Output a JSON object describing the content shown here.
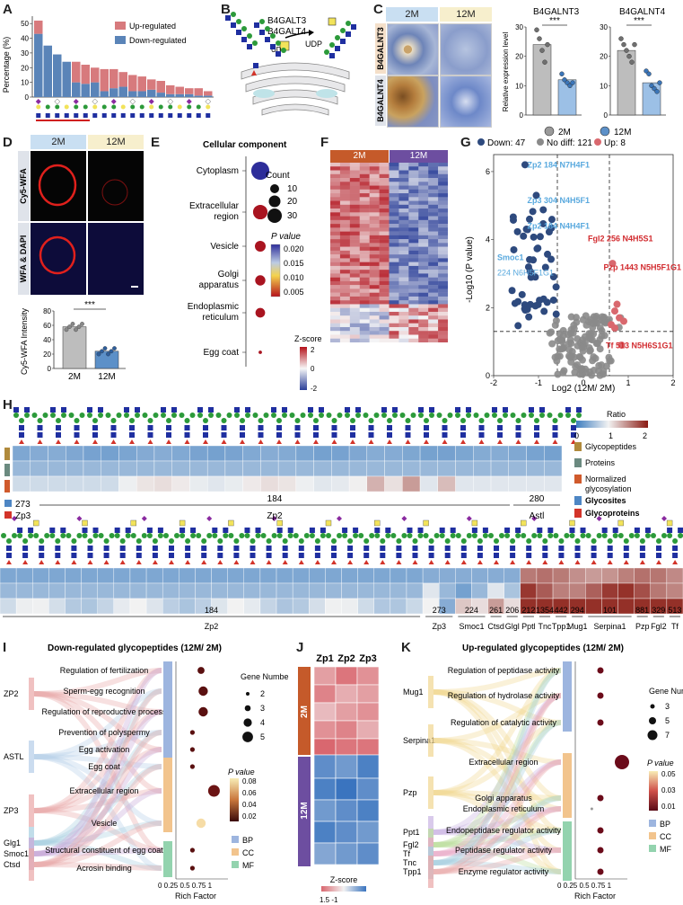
{
  "panel_labels": {
    "A": "A",
    "B": "B",
    "C": "C",
    "D": "D",
    "E": "E",
    "F": "F",
    "G": "G",
    "H": "H",
    "I": "I",
    "J": "J",
    "K": "K"
  },
  "panelA": {
    "ylabel": "Percentage (%)",
    "legend": [
      {
        "label": "Up-regulated",
        "color": "#d77a7d"
      },
      {
        "label": "Down-regulated",
        "color": "#5a84b8"
      }
    ],
    "yticks": [
      "0",
      "10",
      "20",
      "30",
      "40",
      "50"
    ],
    "chart_data": {
      "type": "bar",
      "ylim": [
        0,
        55
      ],
      "series": [
        {
          "name": "Down-regulated",
          "values": [
            43,
            35,
            29,
            24,
            10,
            9,
            10,
            4,
            6,
            7,
            4,
            4,
            5,
            3,
            2,
            2,
            2,
            1,
            1
          ]
        },
        {
          "name": "Up-regulated",
          "values": [
            9,
            0,
            0,
            0,
            14,
            13,
            10,
            15,
            13,
            10,
            11,
            10,
            7,
            8,
            6,
            5,
            4,
            5,
            3
          ]
        }
      ]
    }
  },
  "panelB": {
    "enz1": "B4GALT3",
    "enz2": "B4GALT4",
    "udp": "UDP"
  },
  "panelC": {
    "col1": "2M",
    "col2": "12M",
    "row1": "B4GALNT3",
    "row2": "B4GALNT4",
    "chart1_title": "B4GALNT3",
    "chart2_title": "B4GALNT4",
    "ylabel": "Relative expression level",
    "yticks": [
      "0",
      "10",
      "20",
      "30"
    ],
    "sig": "***",
    "legend1": "2M",
    "legend2": "12M",
    "chart_data": {
      "type": "bar",
      "categories": [
        "2M",
        "12M"
      ],
      "series": [
        {
          "name": "B4GALNT3",
          "values": [
            24,
            12
          ]
        },
        {
          "name": "B4GALNT4",
          "values": [
            22,
            11
          ]
        }
      ],
      "ylim": [
        0,
        30
      ]
    }
  },
  "panelD": {
    "col1": "2M",
    "col2": "12M",
    "row1": "Cy5-WFA",
    "row2": "WFA & DAPI",
    "ylabel": "Cy5-WFA Intensity",
    "yticks": [
      "0",
      "20",
      "40",
      "60",
      "80"
    ],
    "sig": "***",
    "x1": "2M",
    "x2": "12M",
    "chart_data": {
      "type": "bar",
      "categories": [
        "2M",
        "12M"
      ],
      "values": [
        58,
        24
      ],
      "ylim": [
        0,
        80
      ]
    }
  },
  "panelE": {
    "title": "Cellular component",
    "terms": [
      "Cytoplasm",
      "Extracellular region",
      "Vesicle",
      "Golgi apparatus",
      "Endoplasmic reticulum",
      "Egg coat"
    ],
    "count_title": "Count",
    "counts": [
      "10",
      "20",
      "30"
    ],
    "p_title": "P value",
    "p_ticks": [
      "0.020",
      "0.015",
      "0.010",
      "0.005"
    ],
    "chart_data": {
      "type": "scatter",
      "categories": [
        "Cytoplasm",
        "Extracellular region",
        "Vesicle",
        "Golgi apparatus",
        "Endoplasmic reticulum",
        "Egg coat"
      ],
      "counts": [
        28,
        18,
        10,
        9,
        8,
        1
      ],
      "pvalues": [
        0.021,
        0.003,
        0.003,
        0.003,
        0.003,
        0.002
      ]
    }
  },
  "panelF": {
    "col1": "2M",
    "col2": "12M",
    "zlabel": "Z-score",
    "zticks": [
      "2",
      "0",
      "-2"
    ]
  },
  "panelG": {
    "legend": [
      {
        "label": "Down: 47",
        "color": "#2e4a7e"
      },
      {
        "label": "No diff: 121",
        "color": "#8a8a8a"
      },
      {
        "label": "Up: 8",
        "color": "#d9686e"
      }
    ],
    "xlabel": "Log2 (12M/ 2M)",
    "ylabel": "-Log10 (P value)",
    "xticks": [
      "-2",
      "-1",
      "0",
      "1",
      "2"
    ],
    "yticks": [
      "0",
      "2",
      "4",
      "6"
    ],
    "labels": [
      {
        "text": "Zp2 184 N7H4F1",
        "color": "#59a9de"
      },
      {
        "text": "Zp3 304 N4H5F1",
        "color": "#59a9de"
      },
      {
        "text": "Zp2 184 N4H4F1",
        "color": "#59a9de"
      },
      {
        "text": "Smoc1",
        "color": "#59a9de"
      },
      {
        "text": "224 N6H5F1G1",
        "color": "#59a9de"
      },
      {
        "text": "Fgl2 256 N4H5S1",
        "color": "#d22c30"
      },
      {
        "text": "Pzp 1443 N5H5F1G1",
        "color": "#d22c30"
      },
      {
        "text": "Tf 513 N5H6S1G1",
        "color": "#d22c30"
      }
    ],
    "chart_data": {
      "type": "scatter",
      "xlim": [
        -2,
        2
      ],
      "ylim": [
        0,
        6.5
      ]
    }
  },
  "panelH": {
    "ratio_title": "Ratio",
    "ratio_ticks": [
      "0",
      "1",
      "2"
    ],
    "legend": [
      {
        "label": "Glycopeptides",
        "color": "#b08a3c"
      },
      {
        "label": "Proteins",
        "color": "#6b8a80"
      },
      {
        "label": "Normalized glycosylation",
        "color": "#d05a2c"
      },
      {
        "label": "Glycosites",
        "color": "#4e86c4"
      },
      {
        "label": "Glycoproteins",
        "color": "#d3342a"
      }
    ],
    "row1_sites": [
      {
        "num": "273",
        "name": "Zp3"
      },
      {
        "num": "184",
        "name": "Zp2"
      },
      {
        "num": "280",
        "name": "Astl"
      }
    ],
    "left_legend": [
      {
        "num": "273"
      },
      {
        "name": "Zp3"
      }
    ],
    "row2_sites": [
      {
        "num": "184",
        "name": "Zp2"
      },
      {
        "num": "273",
        "name": "Zp3"
      },
      {
        "num": "224",
        "name": "Smoc1"
      },
      {
        "num": "261",
        "name": "Ctsd"
      },
      {
        "num": "206",
        "name": "Glgl"
      },
      {
        "num": "212",
        "name": "Pptl"
      },
      {
        "num": "1354",
        "name": "Tnc"
      },
      {
        "num": "442",
        "name": "Tpp1"
      },
      {
        "num": "294",
        "name": "Mug1"
      },
      {
        "num": "101",
        "name": "Serpina1"
      },
      {
        "num": "881",
        "name": "Pzp"
      },
      {
        "num": "329",
        "name": "Fgl2"
      },
      {
        "num": "513",
        "name": "Tf"
      }
    ]
  },
  "panelI": {
    "title": "Down-regulated glycopeptides (12M/ 2M)",
    "proteins": [
      "ZP2",
      "ASTL",
      "ZP3",
      "Glg1",
      "Smoc1",
      "Ctsd"
    ],
    "terms": [
      "Regulation of fertilization",
      "Sperm-egg recognition",
      "Regulation of reproductive process",
      "Prevention of polyspermy",
      "Egg activation",
      "Egg coat",
      "Extracellular region",
      "Vesicle",
      "Structural constituent of egg coat",
      "Acrosin binding"
    ],
    "gene_title": "Gene Number",
    "genes": [
      "2",
      "3",
      "4",
      "5"
    ],
    "p_title": "P value",
    "p_ticks": [
      "0.08",
      "0.06",
      "0.04",
      "0.02"
    ],
    "cat": [
      "BP",
      "CC",
      "MF"
    ],
    "xlabel": "Rich Factor",
    "xticks": "0 0.25 0.5 0.75 1",
    "chart_data": {
      "type": "scatter",
      "categories": [
        "Regulation of fertilization",
        "Sperm-egg recognition",
        "Regulation of reproductive process",
        "Prevention of polyspermy",
        "Egg activation",
        "Egg coat",
        "Extracellular region",
        "Vesicle",
        "Structural constituent of egg coat",
        "Acrosin binding"
      ],
      "rich": [
        0.5,
        0.55,
        0.55,
        0.3,
        0.3,
        0.3,
        0.8,
        0.5,
        0.3,
        0.3
      ],
      "genes": [
        3,
        4,
        4,
        2,
        2,
        2,
        5,
        4,
        2,
        2
      ]
    }
  },
  "panelJ": {
    "cols": [
      "Zp1",
      "Zp2",
      "Zp3"
    ],
    "rows": [
      "2M",
      "12M"
    ],
    "zlabel": "Z-score",
    "zticks": "1.5      -1"
  },
  "panelK": {
    "title": "Up-regulated glycopeptides (12M/ 2M)",
    "proteins": [
      "Mug1",
      "Serpina1",
      "Pzp",
      "Ppt1",
      "Fgl2",
      "Tf",
      "Tnc",
      "Tpp1"
    ],
    "terms": [
      "Regulation of peptidase activity",
      "Regulation of hydrolase activity",
      "Regulation of catalytic activity",
      "Extracellular region",
      "Golgi apparatus",
      "Endoplasmic reticulum",
      "Endopeptidase regulator activity",
      "Peptidase regulator activity",
      "Enzyme regulator activity"
    ],
    "gene_title": "Gene Number",
    "genes": [
      "3",
      "5",
      "7"
    ],
    "p_title": "P value",
    "p_ticks": [
      "0.05",
      "0.03",
      "0.01"
    ],
    "cat": [
      "BP",
      "CC",
      "MF"
    ],
    "xlabel": "Rich Factor",
    "xticks": "0 0.25 0.5 0.75 1",
    "chart_data": {
      "type": "scatter",
      "categories": [
        "Regulation of peptidase activity",
        "Regulation of hydrolase activity",
        "Regulation of catalytic activity",
        "Extracellular region",
        "Golgi apparatus",
        "Endoplasmic reticulum",
        "Endopeptidase regulator activity",
        "Peptidase regulator activity",
        "Enzyme regulator activity"
      ],
      "rich": [
        0.5,
        0.5,
        0.5,
        1.0,
        0.5,
        0.3,
        0.5,
        0.5,
        0.5
      ],
      "genes": [
        3,
        3,
        3,
        7,
        3,
        1,
        3,
        3,
        3
      ]
    }
  }
}
